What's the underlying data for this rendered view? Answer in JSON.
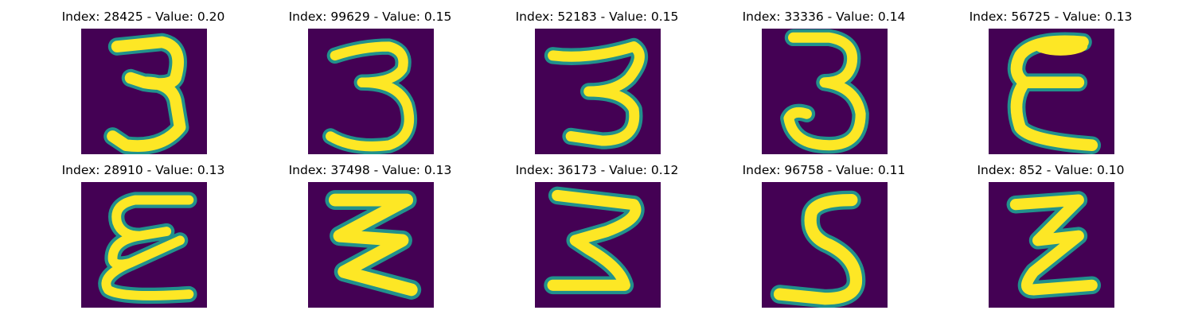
{
  "colors": {
    "background": "#440154",
    "stroke_edge": "#21918c",
    "stroke_mid": "#5ec962",
    "stroke_core": "#fde725"
  },
  "panels": [
    {
      "title": "Index: 28425 - Value: 0.20",
      "digit": "3"
    },
    {
      "title": "Index: 99629 - Value: 0.15",
      "digit": "3"
    },
    {
      "title": "Index: 52183 - Value: 0.15",
      "digit": "3"
    },
    {
      "title": "Index: 33336 - Value: 0.14",
      "digit": "3"
    },
    {
      "title": "Index: 56725 - Value: 0.13",
      "digit": "3"
    },
    {
      "title": "Index: 28910 - Value: 0.13",
      "digit": "3"
    },
    {
      "title": "Index: 37498 - Value: 0.13",
      "digit": "3"
    },
    {
      "title": "Index: 36173 - Value: 0.12",
      "digit": "3"
    },
    {
      "title": "Index: 96758 - Value: 0.11",
      "digit": "3"
    },
    {
      "title": "Index: 852 - Value: 0.10",
      "digit": "3"
    }
  ]
}
